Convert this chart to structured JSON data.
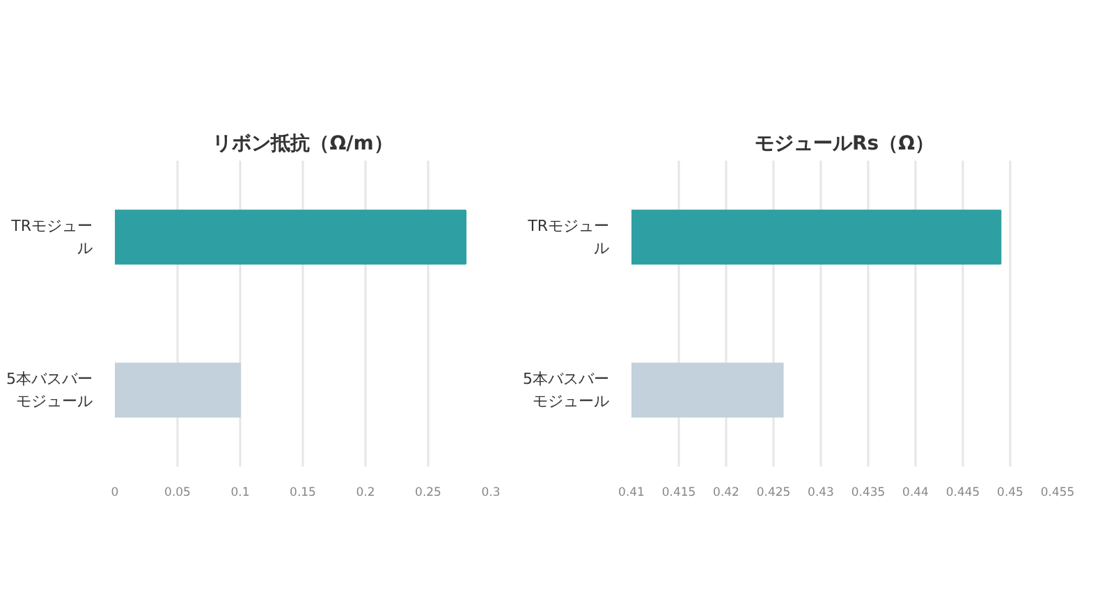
{
  "chart_data": [
    {
      "type": "bar",
      "orientation": "horizontal",
      "title": "リボン抵抗（Ω/m）",
      "categories": [
        "TRモジュール",
        "5本バスバーモジュール"
      ],
      "values": [
        0.28,
        0.1
      ],
      "colors": [
        "#2ea0a3",
        "#c2d1dc"
      ],
      "xlim": [
        0,
        0.3
      ],
      "xticks": [
        0,
        0.05,
        0.1,
        0.15,
        0.2,
        0.25,
        0.3
      ],
      "grid": "x"
    },
    {
      "type": "bar",
      "orientation": "horizontal",
      "title": "モジュールRs（Ω）",
      "categories": [
        "TRモジュール",
        "5本バスバーモジュール"
      ],
      "values": [
        0.449,
        0.426
      ],
      "colors": [
        "#2ea0a3",
        "#c2d1dc"
      ],
      "xlim": [
        0.41,
        0.455
      ],
      "xticks": [
        0.41,
        0.415,
        0.42,
        0.425,
        0.43,
        0.435,
        0.44,
        0.445,
        0.45,
        0.455
      ],
      "grid": "x"
    }
  ]
}
